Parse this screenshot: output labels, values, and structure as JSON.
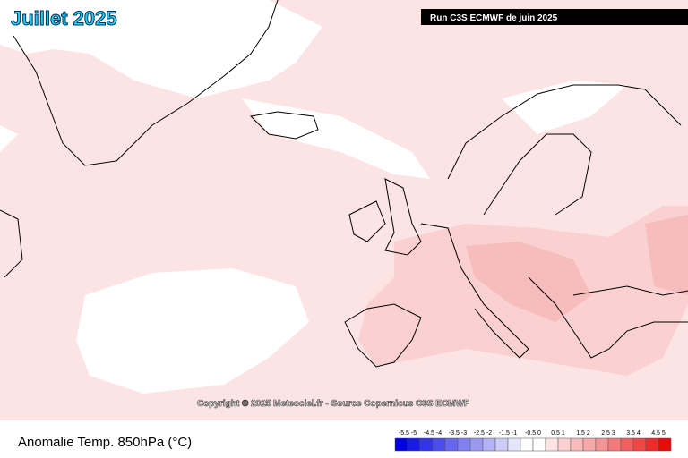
{
  "header": {
    "title": "Juillet 2025",
    "run": "Run C3S ECMWF de juin 2025"
  },
  "map": {
    "copyright": "Copyright © 2025 Meteociel.fr - Source Copernicus C3S ECMWF"
  },
  "footer": {
    "label": "Anomalie Temp. 850hPa (°C)"
  },
  "legend": {
    "labels": [
      "-5.5 -5",
      "-4.5 -4",
      "-3.5 -3",
      "-2.5 -2",
      "-1.5 -1",
      "-0.5 0",
      "0.5 1",
      "1.5 2",
      "2.5 3",
      "3.5 4",
      "4.5 5"
    ],
    "colors": [
      "#0000e6",
      "#1a1ae8",
      "#3333ea",
      "#4d4dec",
      "#6666ee",
      "#8080f0",
      "#9999f2",
      "#b3b3f5",
      "#ccccf8",
      "#e6e6fb",
      "#ffffff",
      "#ffffff",
      "#fde3e3",
      "#fbd0d0",
      "#f9bcbc",
      "#f7a8a8",
      "#f59494",
      "#f37a7a",
      "#f16060",
      "#ef4646",
      "#ed2c2c",
      "#ea0a0a"
    ]
  }
}
